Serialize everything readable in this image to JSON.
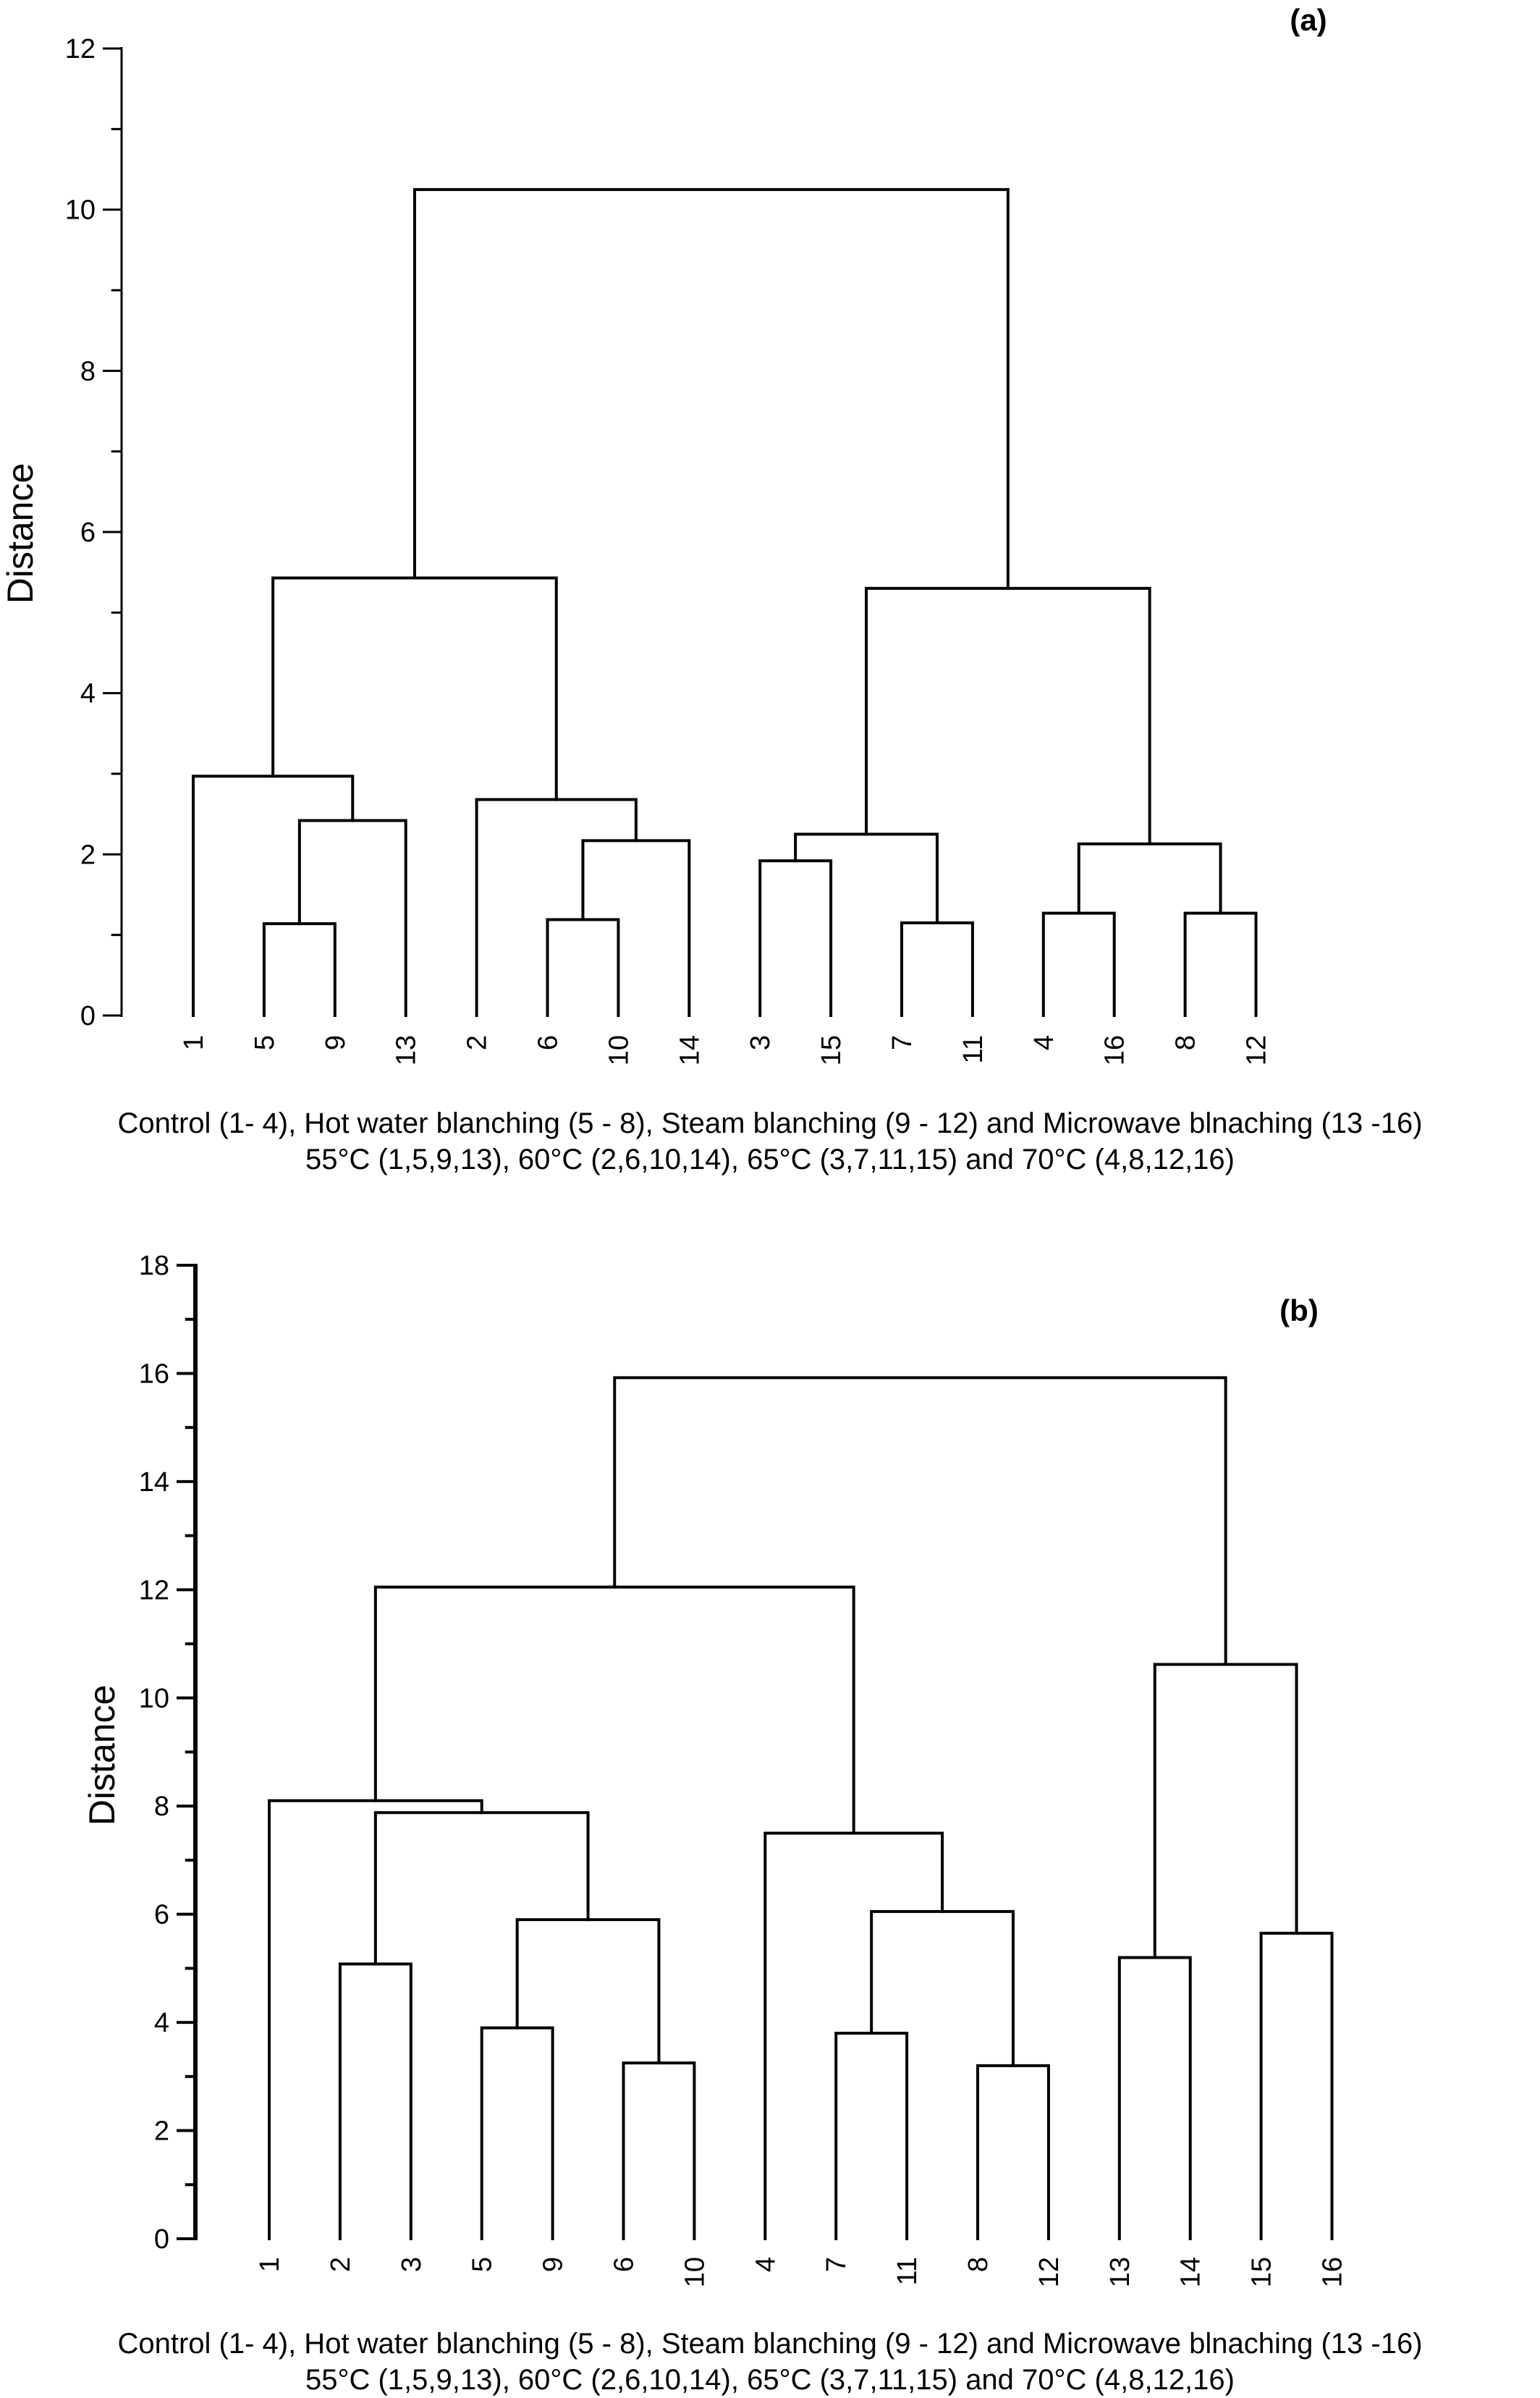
{
  "chart_data": [
    {
      "type": "dendrogram",
      "panel_label": "(a)",
      "ylabel": "Distance",
      "ylim": [
        0,
        12
      ],
      "y_ticks": [
        "0",
        "2",
        "4",
        "6",
        "8",
        "10",
        "12"
      ],
      "leaves": [
        "1",
        "5",
        "9",
        "13",
        "2",
        "6",
        "10",
        "14",
        "3",
        "15",
        "7",
        "11",
        "4",
        "16",
        "8",
        "12"
      ],
      "merges": [
        {
          "id": "a1",
          "left": "5",
          "right": "9",
          "height": 1.14
        },
        {
          "id": "a2",
          "left": "6",
          "right": "10",
          "height": 1.19
        },
        {
          "id": "a3",
          "left": "7",
          "right": "11",
          "height": 1.15
        },
        {
          "id": "a4",
          "left": "4",
          "right": "16",
          "height": 1.27
        },
        {
          "id": "a5",
          "left": "8",
          "right": "12",
          "height": 1.27
        },
        {
          "id": "a6",
          "left": "3",
          "right": "15",
          "height": 1.92
        },
        {
          "id": "a7",
          "left": "a4",
          "right": "a5",
          "height": 2.13
        },
        {
          "id": "a8",
          "left": "a2",
          "right": "14",
          "height": 2.17
        },
        {
          "id": "a9",
          "left": "a6",
          "right": "a3",
          "height": 2.25
        },
        {
          "id": "a10",
          "left": "a1",
          "right": "13",
          "height": 2.42
        },
        {
          "id": "a11",
          "left": "2",
          "right": "a8",
          "height": 2.68
        },
        {
          "id": "a12",
          "left": "1",
          "right": "a10",
          "height": 2.97
        },
        {
          "id": "a13",
          "left": "a9",
          "right": "a7",
          "height": 5.3
        },
        {
          "id": "a14",
          "left": "a12",
          "right": "a11",
          "height": 5.43
        },
        {
          "id": "a15",
          "left": "a14",
          "right": "a13",
          "height": 10.25
        }
      ],
      "caption_lines": [
        "Control (1- 4), Hot water blanching (5 - 8), Steam blanching (9 - 12) and Microwave blnaching (13 -16)",
        "55°C (1,5,9,13), 60°C (2,6,10,14), 65°C (3,7,11,15) and 70°C (4,8,12,16)"
      ]
    },
    {
      "type": "dendrogram",
      "panel_label": "(b)",
      "ylabel": "Distance",
      "ylim": [
        0,
        18
      ],
      "y_ticks": [
        "0",
        "2",
        "4",
        "6",
        "8",
        "10",
        "12",
        "14",
        "16",
        "18"
      ],
      "leaves": [
        "1",
        "2",
        "3",
        "5",
        "9",
        "6",
        "10",
        "4",
        "7",
        "11",
        "8",
        "12",
        "13",
        "14",
        "15",
        "16"
      ],
      "merges": [
        {
          "id": "b1",
          "left": "8",
          "right": "12",
          "height": 3.2
        },
        {
          "id": "b2",
          "left": "6",
          "right": "10",
          "height": 3.25
        },
        {
          "id": "b3",
          "left": "7",
          "right": "11",
          "height": 3.8
        },
        {
          "id": "b4",
          "left": "5",
          "right": "9",
          "height": 3.9
        },
        {
          "id": "b5",
          "left": "2",
          "right": "3",
          "height": 5.08
        },
        {
          "id": "b6",
          "left": "13",
          "right": "14",
          "height": 5.2
        },
        {
          "id": "b7",
          "left": "15",
          "right": "16",
          "height": 5.65
        },
        {
          "id": "b8",
          "left": "b4",
          "right": "b2",
          "height": 5.9
        },
        {
          "id": "b9",
          "left": "b3",
          "right": "b1",
          "height": 6.05
        },
        {
          "id": "b10",
          "left": "4",
          "right": "b9",
          "height": 7.5
        },
        {
          "id": "b11",
          "left": "b5",
          "right": "b8",
          "height": 7.88
        },
        {
          "id": "b12",
          "left": "1",
          "right": "b11",
          "height": 8.1
        },
        {
          "id": "b13",
          "left": "b6",
          "right": "b7",
          "height": 10.62
        },
        {
          "id": "b14",
          "left": "b12",
          "right": "b10",
          "height": 12.05
        },
        {
          "id": "b15",
          "left": "b14",
          "right": "b13",
          "height": 15.92
        }
      ],
      "caption_lines": [
        "Control (1- 4), Hot water blanching (5 - 8), Steam blanching (9 - 12) and Microwave blnaching (13 -16)",
        "55°C (1,5,9,13), 60°C (2,6,10,14), 65°C (3,7,11,15) and 70°C (4,8,12,16)"
      ]
    }
  ]
}
